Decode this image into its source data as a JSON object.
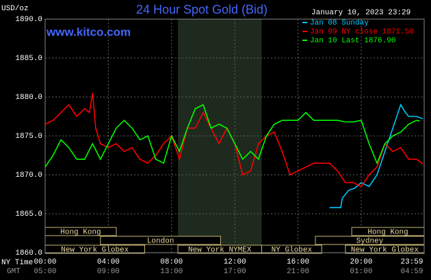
{
  "chart_data": {
    "type": "line",
    "title": "24 Hour Spot Gold (Bid)",
    "y_label": "USD/oz",
    "timestamp": "January 10, 2023 23:29",
    "site": "www.kitco.com",
    "x_row_label": "NY Time",
    "x2_row_label": "GMT",
    "xlim": [
      0,
      23.983
    ],
    "ylim": [
      1860,
      1890
    ],
    "grid": true,
    "xticks": [
      {
        "value": 0,
        "label": "00:00"
      },
      {
        "value": 4,
        "label": "04:00"
      },
      {
        "value": 8,
        "label": "08:00"
      },
      {
        "value": 12,
        "label": "12:00"
      },
      {
        "value": 16,
        "label": "16:00"
      },
      {
        "value": 20,
        "label": "20:00"
      },
      {
        "value": 23.983,
        "label": "23:59"
      }
    ],
    "x2ticks": [
      {
        "value": 0,
        "label": "05:00"
      },
      {
        "value": 4,
        "label": "09:00"
      },
      {
        "value": 8,
        "label": "13:00"
      },
      {
        "value": 12,
        "label": "17:00"
      },
      {
        "value": 16,
        "label": "21:00"
      },
      {
        "value": 20,
        "label": "01:00"
      },
      {
        "value": 23.983,
        "label": "04:59"
      }
    ],
    "yticks": [
      {
        "value": 1860,
        "label": "1860.0"
      },
      {
        "value": 1865,
        "label": "1865.0"
      },
      {
        "value": 1870,
        "label": "1870.0"
      },
      {
        "value": 1875,
        "label": "1875.0"
      },
      {
        "value": 1880,
        "label": "1880.0"
      },
      {
        "value": 1885,
        "label": "1885.0"
      },
      {
        "value": 1890,
        "label": "1890.0"
      }
    ],
    "sessions": [
      {
        "name": "Hong Kong",
        "row": 0,
        "start": 0,
        "end": 4.5
      },
      {
        "name": "London",
        "row": 1,
        "start": 3.5,
        "end": 11.1
      },
      {
        "name": "New York Globex",
        "row": 2,
        "start": 0,
        "end": 6.3
      },
      {
        "name": "New York NYMEX",
        "row": 2,
        "start": 8.4,
        "end": 13.7,
        "shade": true
      },
      {
        "name": "NY Globex",
        "row": 2,
        "start": 13.7,
        "end": 17.5
      },
      {
        "name": "Hong Kong",
        "row": 0,
        "start": 19.4,
        "end": 23.983
      },
      {
        "name": "Sydney",
        "row": 1,
        "start": 17.1,
        "end": 23.983
      },
      {
        "name": "New York Globex",
        "row": 2,
        "start": 19,
        "end": 23.983
      }
    ],
    "series": [
      {
        "name": "Jan 08 Sunday",
        "color": "#00c8ff",
        "x": [
          18.0,
          18.7,
          18.8,
          19.2,
          19.6,
          20,
          20.5,
          21,
          21.5,
          22,
          22.5,
          22.8,
          23,
          23.5,
          23.9
        ],
        "values": [
          1865.8,
          1865.8,
          1867,
          1868,
          1868.3,
          1869,
          1868.5,
          1870,
          1873,
          1876,
          1879,
          1878,
          1877.5,
          1877.5,
          1877.2
        ]
      },
      {
        "name": "Jan 09 NY close 1871.50",
        "color": "#ff0000",
        "x": [
          0,
          0.5,
          1,
          1.5,
          2,
          2.5,
          2.8,
          3,
          3.2,
          3.5,
          4,
          4.5,
          5,
          5.5,
          6,
          6.5,
          7,
          7.5,
          8,
          8.5,
          9,
          9.5,
          10,
          10.5,
          11,
          11.5,
          12,
          12.5,
          13,
          13.5,
          14,
          14.5,
          15,
          15.5,
          16,
          16.5,
          17,
          17.5,
          18,
          18.5,
          19,
          19.5,
          20,
          20.5,
          21,
          21.5,
          22,
          22.5,
          23,
          23.5,
          23.9
        ],
        "values": [
          1876.5,
          1877,
          1878,
          1879,
          1877.5,
          1878.5,
          1878,
          1880.5,
          1876,
          1874,
          1873.5,
          1874,
          1873,
          1873.5,
          1872,
          1871.5,
          1872.5,
          1874,
          1875,
          1872,
          1876,
          1876,
          1878,
          1876,
          1874,
          1876,
          1874,
          1870,
          1870.5,
          1874,
          1875,
          1875.5,
          1873,
          1870,
          1870.5,
          1871,
          1871.5,
          1871.5,
          1871.5,
          1870.5,
          1869,
          1869,
          1868.5,
          1870,
          1871,
          1874,
          1873,
          1873.5,
          1872,
          1872,
          1871.4
        ]
      },
      {
        "name": "Jan 10 Last 1876.90",
        "color": "#00ff00",
        "x": [
          0,
          0.5,
          1,
          1.5,
          2,
          2.5,
          3,
          3.5,
          4,
          4.5,
          5,
          5.5,
          6,
          6.5,
          7,
          7.5,
          8,
          8.5,
          9,
          9.5,
          10,
          10.5,
          11,
          11.5,
          12,
          12.5,
          13,
          13.5,
          14,
          14.5,
          15,
          15.5,
          16,
          16.5,
          17,
          17.5,
          18,
          18.5,
          19,
          19.5,
          20,
          20.5,
          21,
          21.5,
          22,
          22.5,
          23,
          23.5,
          23.7
        ],
        "values": [
          1871,
          1872.5,
          1874.5,
          1873.5,
          1872,
          1872,
          1874,
          1872,
          1874,
          1876,
          1877,
          1876,
          1874.5,
          1875,
          1872,
          1871.5,
          1875,
          1873,
          1876,
          1878.5,
          1879,
          1876,
          1876.5,
          1876,
          1874,
          1872,
          1873,
          1872,
          1875,
          1876.5,
          1877,
          1877,
          1877,
          1878,
          1877,
          1877,
          1877,
          1877,
          1876.8,
          1876.8,
          1877,
          1874,
          1871.5,
          1874,
          1875,
          1875.5,
          1876.5,
          1877,
          1876.9
        ]
      }
    ]
  }
}
